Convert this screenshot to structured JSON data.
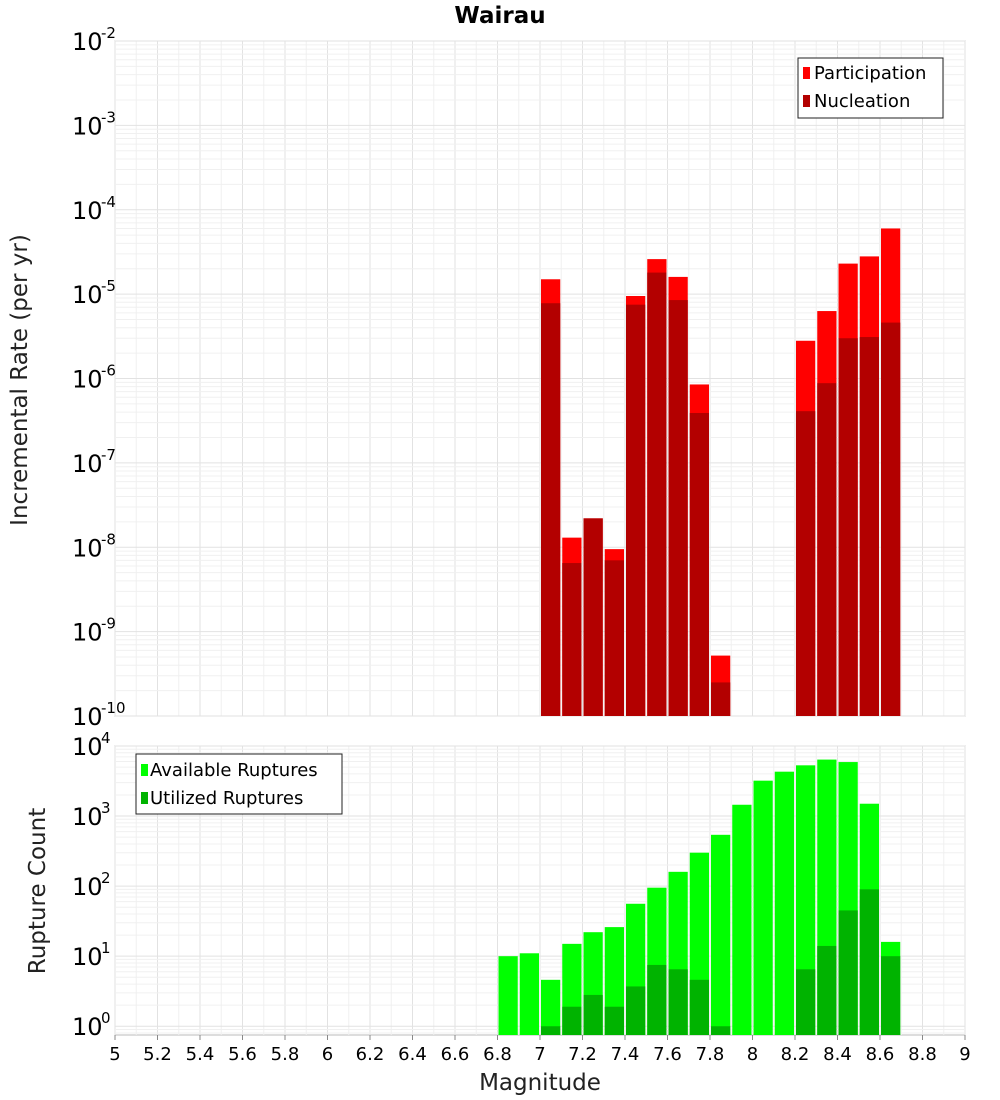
{
  "title": "Wairau",
  "chart_data": [
    {
      "type": "bar",
      "ylabel": "Incremental Rate (per yr)",
      "xlabel": "",
      "yscale": "log",
      "ylim": [
        1e-10,
        0.01
      ],
      "xlim": [
        5,
        9
      ],
      "bar_width": 0.1,
      "legend_position": "top-right",
      "grid": true,
      "x": [
        7.05,
        7.15,
        7.25,
        7.35,
        7.45,
        7.55,
        7.65,
        7.75,
        7.85,
        8.25,
        8.35,
        8.45,
        8.55,
        8.65
      ],
      "series": [
        {
          "name": "Participation",
          "color": "#ff0000",
          "values": [
            1.5e-05,
            1.3e-08,
            2.2e-08,
            9.5e-09,
            9.5e-06,
            2.6e-05,
            1.6e-05,
            8.5e-07,
            5.2e-10,
            2.8e-06,
            6.3e-06,
            2.3e-05,
            2.8e-05,
            6e-05
          ]
        },
        {
          "name": "Nucleation",
          "color": "#b30000",
          "values": [
            7.8e-06,
            6.5e-09,
            2.2e-08,
            7e-09,
            7.5e-06,
            1.8e-05,
            8.5e-06,
            3.9e-07,
            2.5e-10,
            4.1e-07,
            8.8e-07,
            3e-06,
            3.1e-06,
            4.6e-06
          ]
        }
      ]
    },
    {
      "type": "bar",
      "ylabel": "Rupture Count",
      "xlabel": "Magnitude",
      "yscale": "log",
      "ylim": [
        0.75,
        10000
      ],
      "xlim": [
        5,
        9
      ],
      "bar_width": 0.1,
      "legend_position": "top-left",
      "grid": true,
      "x_ticks": [
        "5",
        "5.2",
        "5.4",
        "5.6",
        "5.8",
        "6",
        "6.2",
        "6.4",
        "6.6",
        "6.8",
        "7",
        "7.2",
        "7.4",
        "7.6",
        "7.8",
        "8",
        "8.2",
        "8.4",
        "8.6",
        "8.8",
        "9"
      ],
      "x": [
        6.85,
        6.95,
        7.05,
        7.15,
        7.25,
        7.35,
        7.45,
        7.55,
        7.65,
        7.75,
        7.85,
        7.95,
        8.05,
        8.15,
        8.25,
        8.35,
        8.45,
        8.55,
        8.65
      ],
      "series": [
        {
          "name": "Available Ruptures",
          "color": "#00ff00",
          "values": [
            10,
            11,
            4.6,
            15,
            22,
            26,
            56,
            95,
            160,
            300,
            540,
            1450,
            3200,
            4300,
            5300,
            6400,
            5900,
            1500,
            16
          ]
        },
        {
          "name": "Utilized Ruptures",
          "color": "#00b300",
          "values": [
            0,
            0,
            1,
            1.9,
            2.8,
            1.9,
            3.7,
            7.5,
            6.5,
            4.6,
            1,
            0,
            0,
            0,
            6.5,
            14,
            45,
            90,
            10
          ]
        }
      ]
    }
  ]
}
